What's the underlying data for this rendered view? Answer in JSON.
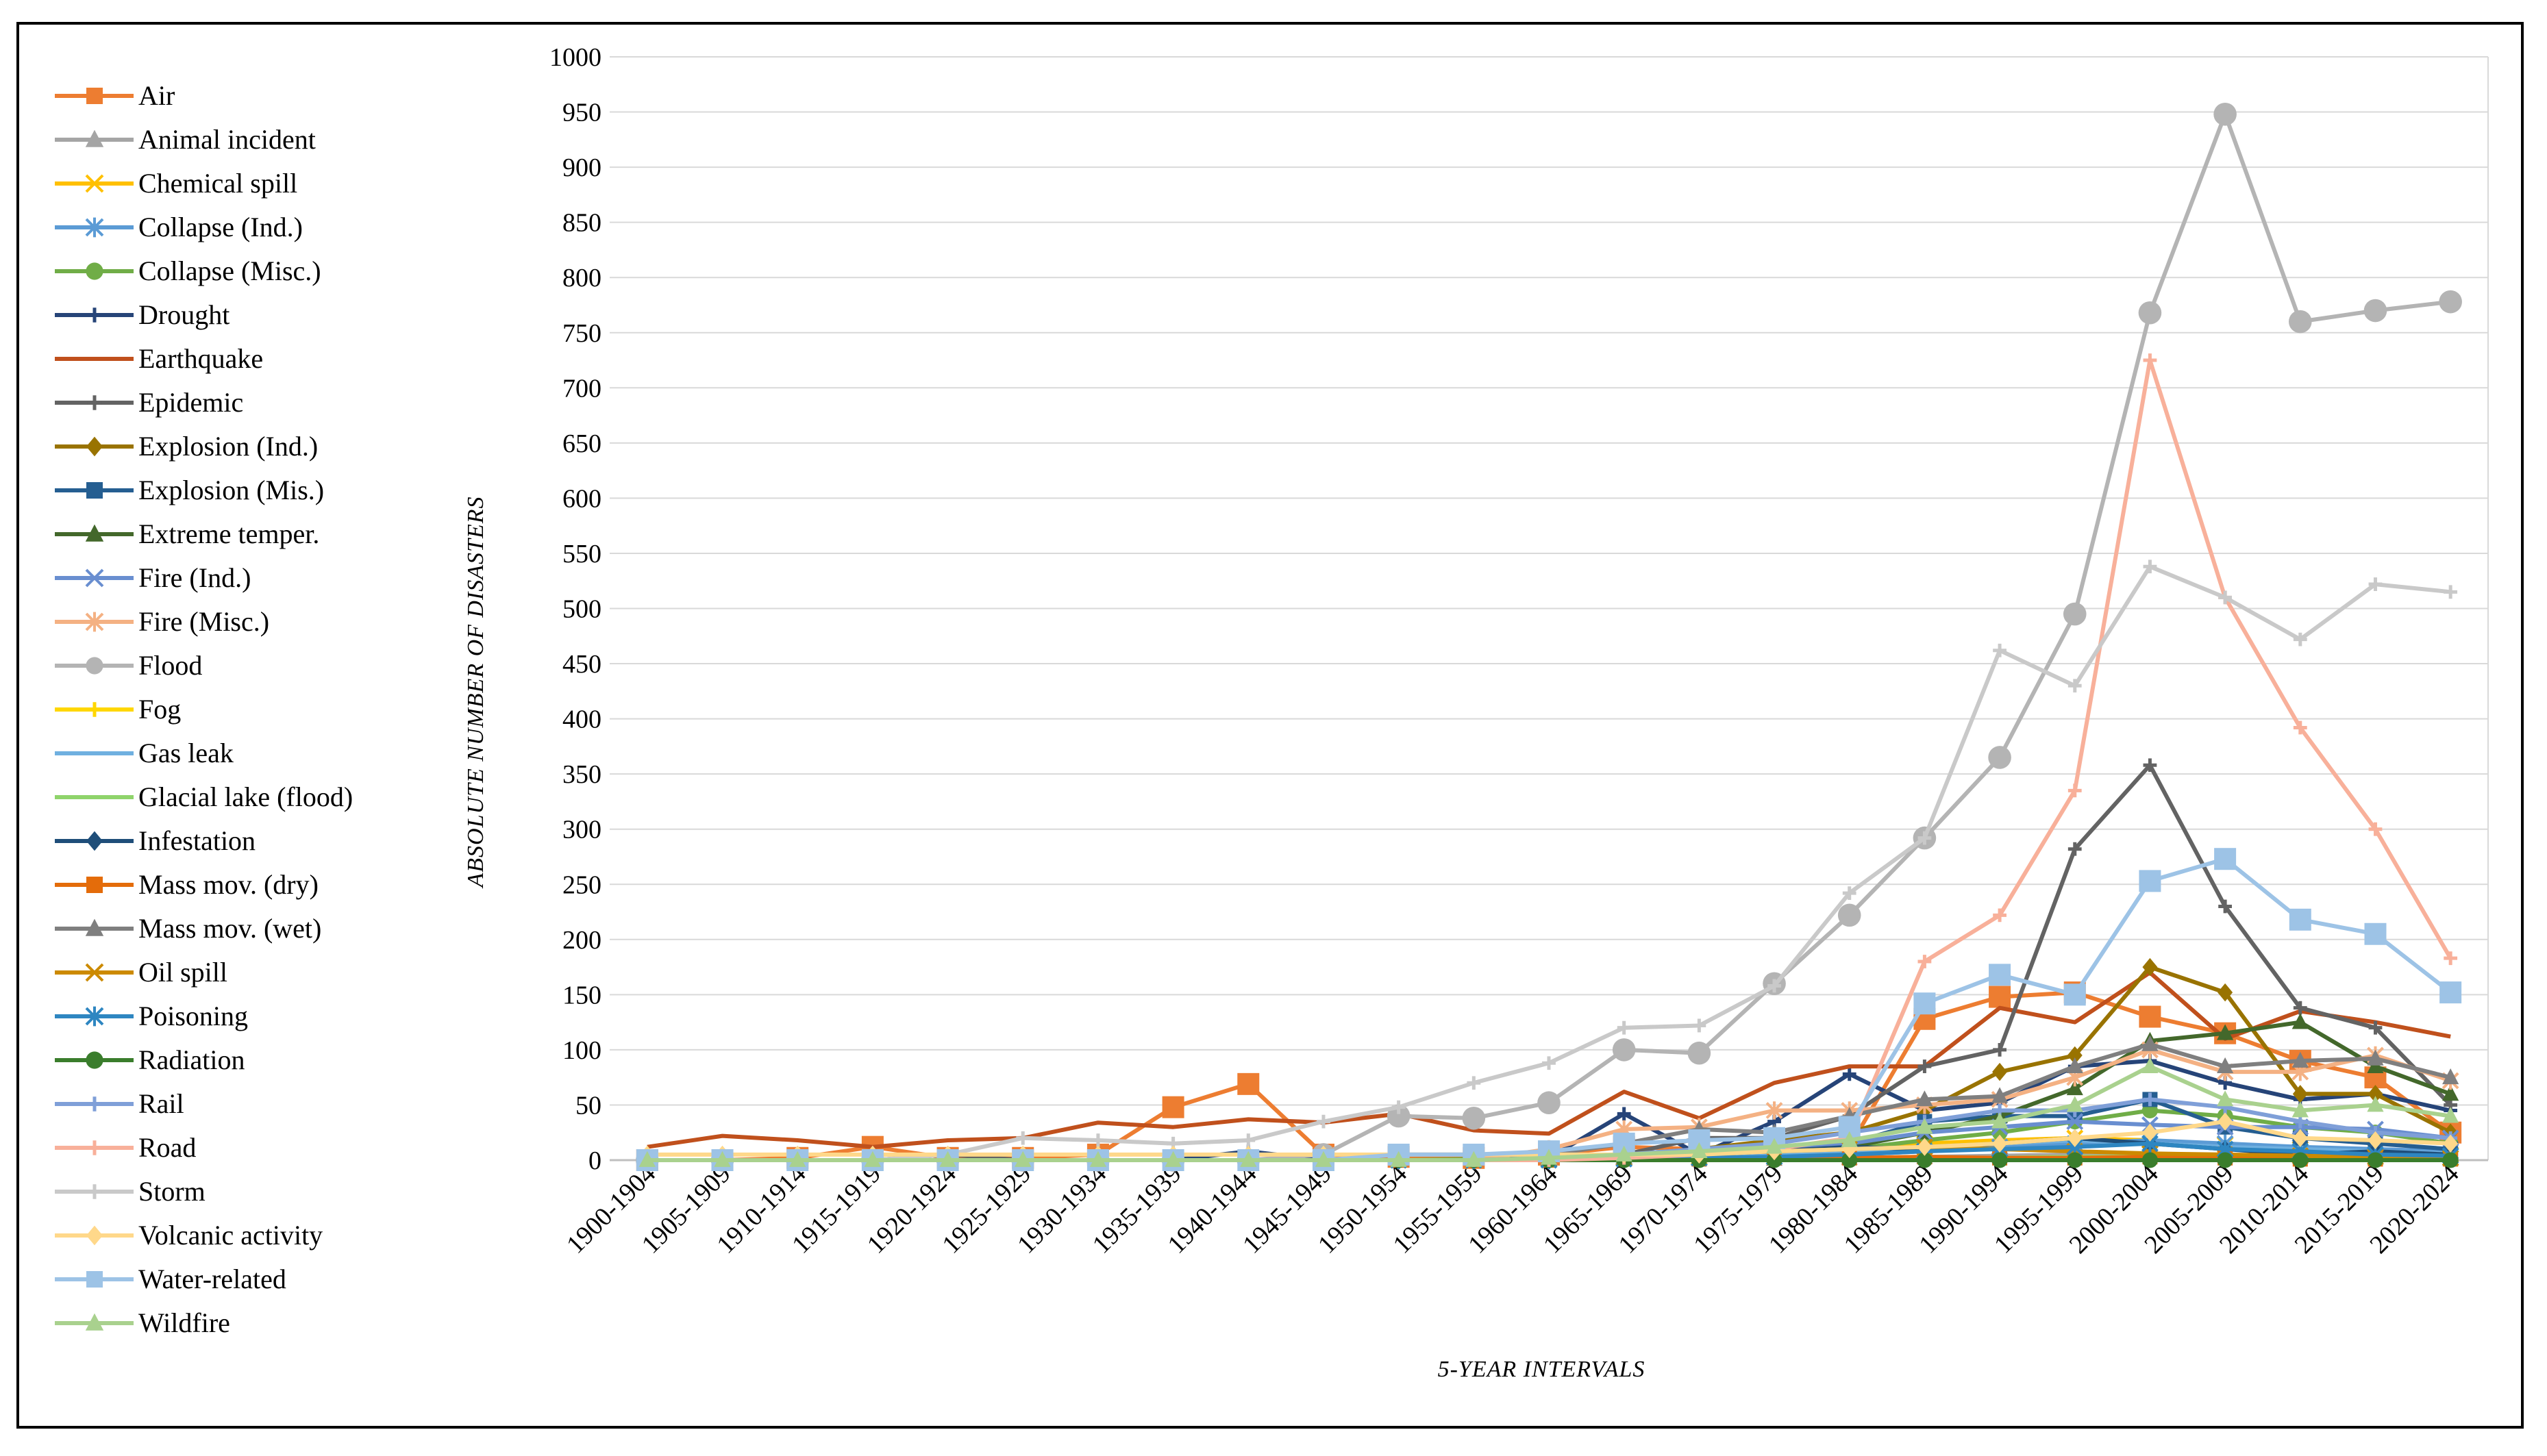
{
  "chart_data": {
    "type": "line",
    "title": "",
    "xlabel": "5-YEAR INTERVALS",
    "ylabel": "ABSOLUTE NUMBER OF DISASTERS",
    "ylim": [
      0,
      1000
    ],
    "ytick_step": 50,
    "grid": "horizontal",
    "legend_position": "left",
    "categories": [
      "1900-1904",
      "1905-1909",
      "1910-1914",
      "1915-1919",
      "1920-1924",
      "1925-1929",
      "1930-1934",
      "1935-1939",
      "1940-1944",
      "1945-1949",
      "1950-1954",
      "1955-1959",
      "1960-1964",
      "1965-1969",
      "1970-1974",
      "1975-1979",
      "1980-1984",
      "1985-1989",
      "1990-1994",
      "1995-1999",
      "2000-2004",
      "2005-2009",
      "2010-2014",
      "2015-2019",
      "2020-2024"
    ],
    "series": [
      {
        "name": "Air",
        "color": "#ED7D31",
        "marker": "square",
        "values": [
          0,
          0,
          2,
          12,
          2,
          2,
          5,
          48,
          69,
          5,
          3,
          2,
          5,
          12,
          10,
          12,
          12,
          128,
          148,
          152,
          130,
          115,
          90,
          75,
          25
        ]
      },
      {
        "name": "Animal incident",
        "color": "#A5A5A5",
        "marker": "triangle",
        "values": [
          0,
          0,
          0,
          0,
          0,
          0,
          0,
          0,
          0,
          0,
          0,
          0,
          0,
          1,
          1,
          1,
          2,
          3,
          4,
          5,
          5,
          4,
          3,
          2,
          1
        ]
      },
      {
        "name": "Chemical spill",
        "color": "#FFC000",
        "marker": "x",
        "values": [
          0,
          0,
          0,
          0,
          0,
          0,
          0,
          0,
          0,
          0,
          0,
          0,
          1,
          2,
          3,
          5,
          10,
          15,
          18,
          20,
          18,
          14,
          10,
          8,
          5
        ]
      },
      {
        "name": "Collapse (Ind.)",
        "color": "#5B9BD5",
        "marker": "star",
        "values": [
          0,
          0,
          0,
          0,
          0,
          0,
          0,
          0,
          0,
          0,
          0,
          0,
          1,
          2,
          2,
          3,
          5,
          8,
          12,
          15,
          18,
          15,
          12,
          10,
          8
        ]
      },
      {
        "name": "Collapse (Misc.)",
        "color": "#70AD47",
        "marker": "circle",
        "values": [
          0,
          0,
          0,
          0,
          0,
          0,
          0,
          0,
          0,
          0,
          0,
          1,
          1,
          2,
          3,
          5,
          10,
          18,
          25,
          35,
          45,
          40,
          30,
          25,
          15
        ]
      },
      {
        "name": "Drought",
        "color": "#264478",
        "marker": "plus",
        "values": [
          0,
          0,
          0,
          0,
          0,
          0,
          0,
          0,
          8,
          0,
          0,
          0,
          2,
          42,
          5,
          35,
          78,
          45,
          52,
          85,
          90,
          70,
          55,
          60,
          45
        ]
      },
      {
        "name": "Earthquake",
        "color": "#C0501C",
        "marker": "none",
        "values": [
          12,
          22,
          18,
          12,
          18,
          20,
          34,
          30,
          37,
          34,
          42,
          27,
          24,
          62,
          38,
          70,
          85,
          85,
          138,
          125,
          170,
          110,
          135,
          125,
          112
        ]
      },
      {
        "name": "Epidemic",
        "color": "#636363",
        "marker": "plus",
        "values": [
          0,
          0,
          0,
          0,
          5,
          0,
          0,
          0,
          0,
          0,
          0,
          0,
          2,
          5,
          20,
          20,
          40,
          85,
          100,
          282,
          358,
          230,
          138,
          120,
          50
        ]
      },
      {
        "name": "Explosion (Ind.)",
        "color": "#997300",
        "marker": "diamond",
        "values": [
          0,
          0,
          0,
          0,
          0,
          0,
          0,
          0,
          0,
          0,
          0,
          0,
          2,
          5,
          10,
          18,
          25,
          45,
          80,
          95,
          175,
          152,
          60,
          60,
          25
        ]
      },
      {
        "name": "Explosion (Mis.)",
        "color": "#255E91",
        "marker": "square",
        "values": [
          0,
          0,
          0,
          0,
          0,
          0,
          0,
          0,
          0,
          0,
          0,
          0,
          1,
          2,
          5,
          8,
          15,
          35,
          40,
          40,
          55,
          30,
          20,
          15,
          10
        ]
      },
      {
        "name": "Extreme temper.",
        "color": "#43682B",
        "marker": "triangle",
        "values": [
          0,
          0,
          0,
          0,
          0,
          0,
          0,
          0,
          0,
          0,
          0,
          0,
          1,
          2,
          5,
          8,
          12,
          25,
          40,
          65,
          108,
          115,
          125,
          85,
          60
        ]
      },
      {
        "name": "Fire (Ind.)",
        "color": "#698ED0",
        "marker": "x",
        "values": [
          0,
          0,
          0,
          0,
          0,
          0,
          0,
          0,
          0,
          0,
          0,
          0,
          2,
          3,
          8,
          10,
          15,
          25,
          30,
          35,
          32,
          30,
          30,
          28,
          20
        ]
      },
      {
        "name": "Fire (Misc.)",
        "color": "#F4B183",
        "marker": "star",
        "values": [
          0,
          0,
          0,
          0,
          0,
          0,
          0,
          0,
          0,
          0,
          0,
          0,
          10,
          28,
          30,
          45,
          45,
          50,
          55,
          75,
          100,
          80,
          80,
          95,
          72
        ]
      },
      {
        "name": "Flood",
        "color": "#B4B4B4",
        "marker": "circle",
        "values": [
          0,
          0,
          0,
          0,
          0,
          0,
          0,
          0,
          0,
          5,
          40,
          38,
          52,
          100,
          97,
          160,
          222,
          292,
          365,
          495,
          768,
          948,
          760,
          770,
          778
        ]
      },
      {
        "name": "Fog",
        "color": "#FFD700",
        "marker": "plus",
        "values": [
          0,
          0,
          0,
          0,
          0,
          0,
          0,
          0,
          0,
          0,
          0,
          0,
          0,
          0,
          1,
          1,
          2,
          2,
          2,
          3,
          3,
          2,
          2,
          1,
          1
        ]
      },
      {
        "name": "Gas leak",
        "color": "#6FB0E0",
        "marker": "none",
        "values": [
          0,
          0,
          0,
          0,
          0,
          0,
          0,
          0,
          0,
          0,
          0,
          0,
          1,
          2,
          3,
          4,
          8,
          12,
          15,
          18,
          15,
          12,
          10,
          8,
          6
        ]
      },
      {
        "name": "Glacial lake (flood)",
        "color": "#8FD46B",
        "marker": "none",
        "values": [
          0,
          0,
          0,
          0,
          0,
          0,
          0,
          0,
          0,
          0,
          0,
          0,
          0,
          0,
          1,
          1,
          1,
          2,
          2,
          3,
          3,
          3,
          3,
          4,
          3
        ]
      },
      {
        "name": "Infestation",
        "color": "#1F4E79",
        "marker": "diamond",
        "values": [
          0,
          0,
          0,
          0,
          0,
          0,
          0,
          0,
          0,
          0,
          0,
          0,
          0,
          5,
          5,
          8,
          12,
          10,
          15,
          20,
          15,
          10,
          5,
          8,
          5
        ]
      },
      {
        "name": "Mass mov. (dry)",
        "color": "#E46C0A",
        "marker": "square",
        "values": [
          0,
          0,
          0,
          0,
          0,
          0,
          0,
          0,
          0,
          0,
          0,
          0,
          0,
          1,
          1,
          2,
          2,
          3,
          2,
          2,
          3,
          2,
          1,
          1,
          1
        ]
      },
      {
        "name": "Mass mov. (wet)",
        "color": "#7F7F7F",
        "marker": "triangle",
        "values": [
          0,
          0,
          0,
          0,
          0,
          0,
          0,
          0,
          0,
          0,
          5,
          5,
          5,
          15,
          28,
          25,
          40,
          55,
          58,
          85,
          105,
          85,
          90,
          92,
          75
        ]
      },
      {
        "name": "Oil spill",
        "color": "#CC8A00",
        "marker": "x",
        "values": [
          0,
          0,
          0,
          0,
          0,
          0,
          0,
          0,
          0,
          0,
          0,
          0,
          0,
          2,
          5,
          8,
          10,
          12,
          10,
          8,
          6,
          5,
          4,
          3,
          2
        ]
      },
      {
        "name": "Poisoning",
        "color": "#2E86C1",
        "marker": "star",
        "values": [
          0,
          0,
          0,
          0,
          0,
          0,
          0,
          0,
          0,
          0,
          0,
          0,
          0,
          1,
          2,
          3,
          5,
          8,
          10,
          12,
          15,
          10,
          8,
          5,
          4
        ]
      },
      {
        "name": "Radiation",
        "color": "#3A7D2C",
        "marker": "circle",
        "values": [
          0,
          0,
          0,
          0,
          0,
          0,
          0,
          0,
          0,
          0,
          0,
          0,
          0,
          0,
          0,
          0,
          0,
          0,
          0,
          0,
          0,
          0,
          0,
          0,
          0
        ]
      },
      {
        "name": "Rail",
        "color": "#7F9FD8",
        "marker": "plus",
        "values": [
          0,
          0,
          0,
          0,
          0,
          0,
          0,
          0,
          0,
          0,
          0,
          0,
          2,
          5,
          10,
          15,
          25,
          35,
          45,
          45,
          55,
          48,
          35,
          25,
          20
        ]
      },
      {
        "name": "Road",
        "color": "#F8B09A",
        "marker": "plus",
        "values": [
          0,
          0,
          0,
          0,
          0,
          0,
          0,
          0,
          0,
          0,
          0,
          0,
          0,
          2,
          5,
          10,
          20,
          180,
          222,
          335,
          725,
          510,
          392,
          300,
          183
        ]
      },
      {
        "name": "Storm",
        "color": "#C9C9C9",
        "marker": "plus",
        "values": [
          0,
          0,
          0,
          0,
          5,
          20,
          18,
          15,
          18,
          35,
          48,
          70,
          88,
          120,
          122,
          158,
          242,
          292,
          462,
          430,
          538,
          510,
          472,
          522,
          515
        ]
      },
      {
        "name": "Volcanic activity",
        "color": "#FFD88A",
        "marker": "diamond",
        "values": [
          5,
          5,
          5,
          5,
          5,
          5,
          5,
          5,
          5,
          5,
          5,
          5,
          5,
          5,
          5,
          8,
          10,
          12,
          15,
          20,
          25,
          35,
          20,
          18,
          15
        ]
      },
      {
        "name": "Water-related",
        "color": "#9DC3E6",
        "marker": "square",
        "values": [
          0,
          0,
          0,
          0,
          0,
          0,
          0,
          0,
          0,
          0,
          5,
          5,
          8,
          15,
          18,
          20,
          30,
          142,
          168,
          150,
          253,
          273,
          218,
          205,
          152
        ]
      },
      {
        "name": "Wildfire",
        "color": "#A9D18E",
        "marker": "triangle",
        "values": [
          0,
          0,
          0,
          0,
          0,
          0,
          0,
          0,
          0,
          0,
          0,
          0,
          2,
          5,
          8,
          12,
          18,
          30,
          35,
          50,
          85,
          55,
          45,
          50,
          40
        ]
      }
    ]
  }
}
